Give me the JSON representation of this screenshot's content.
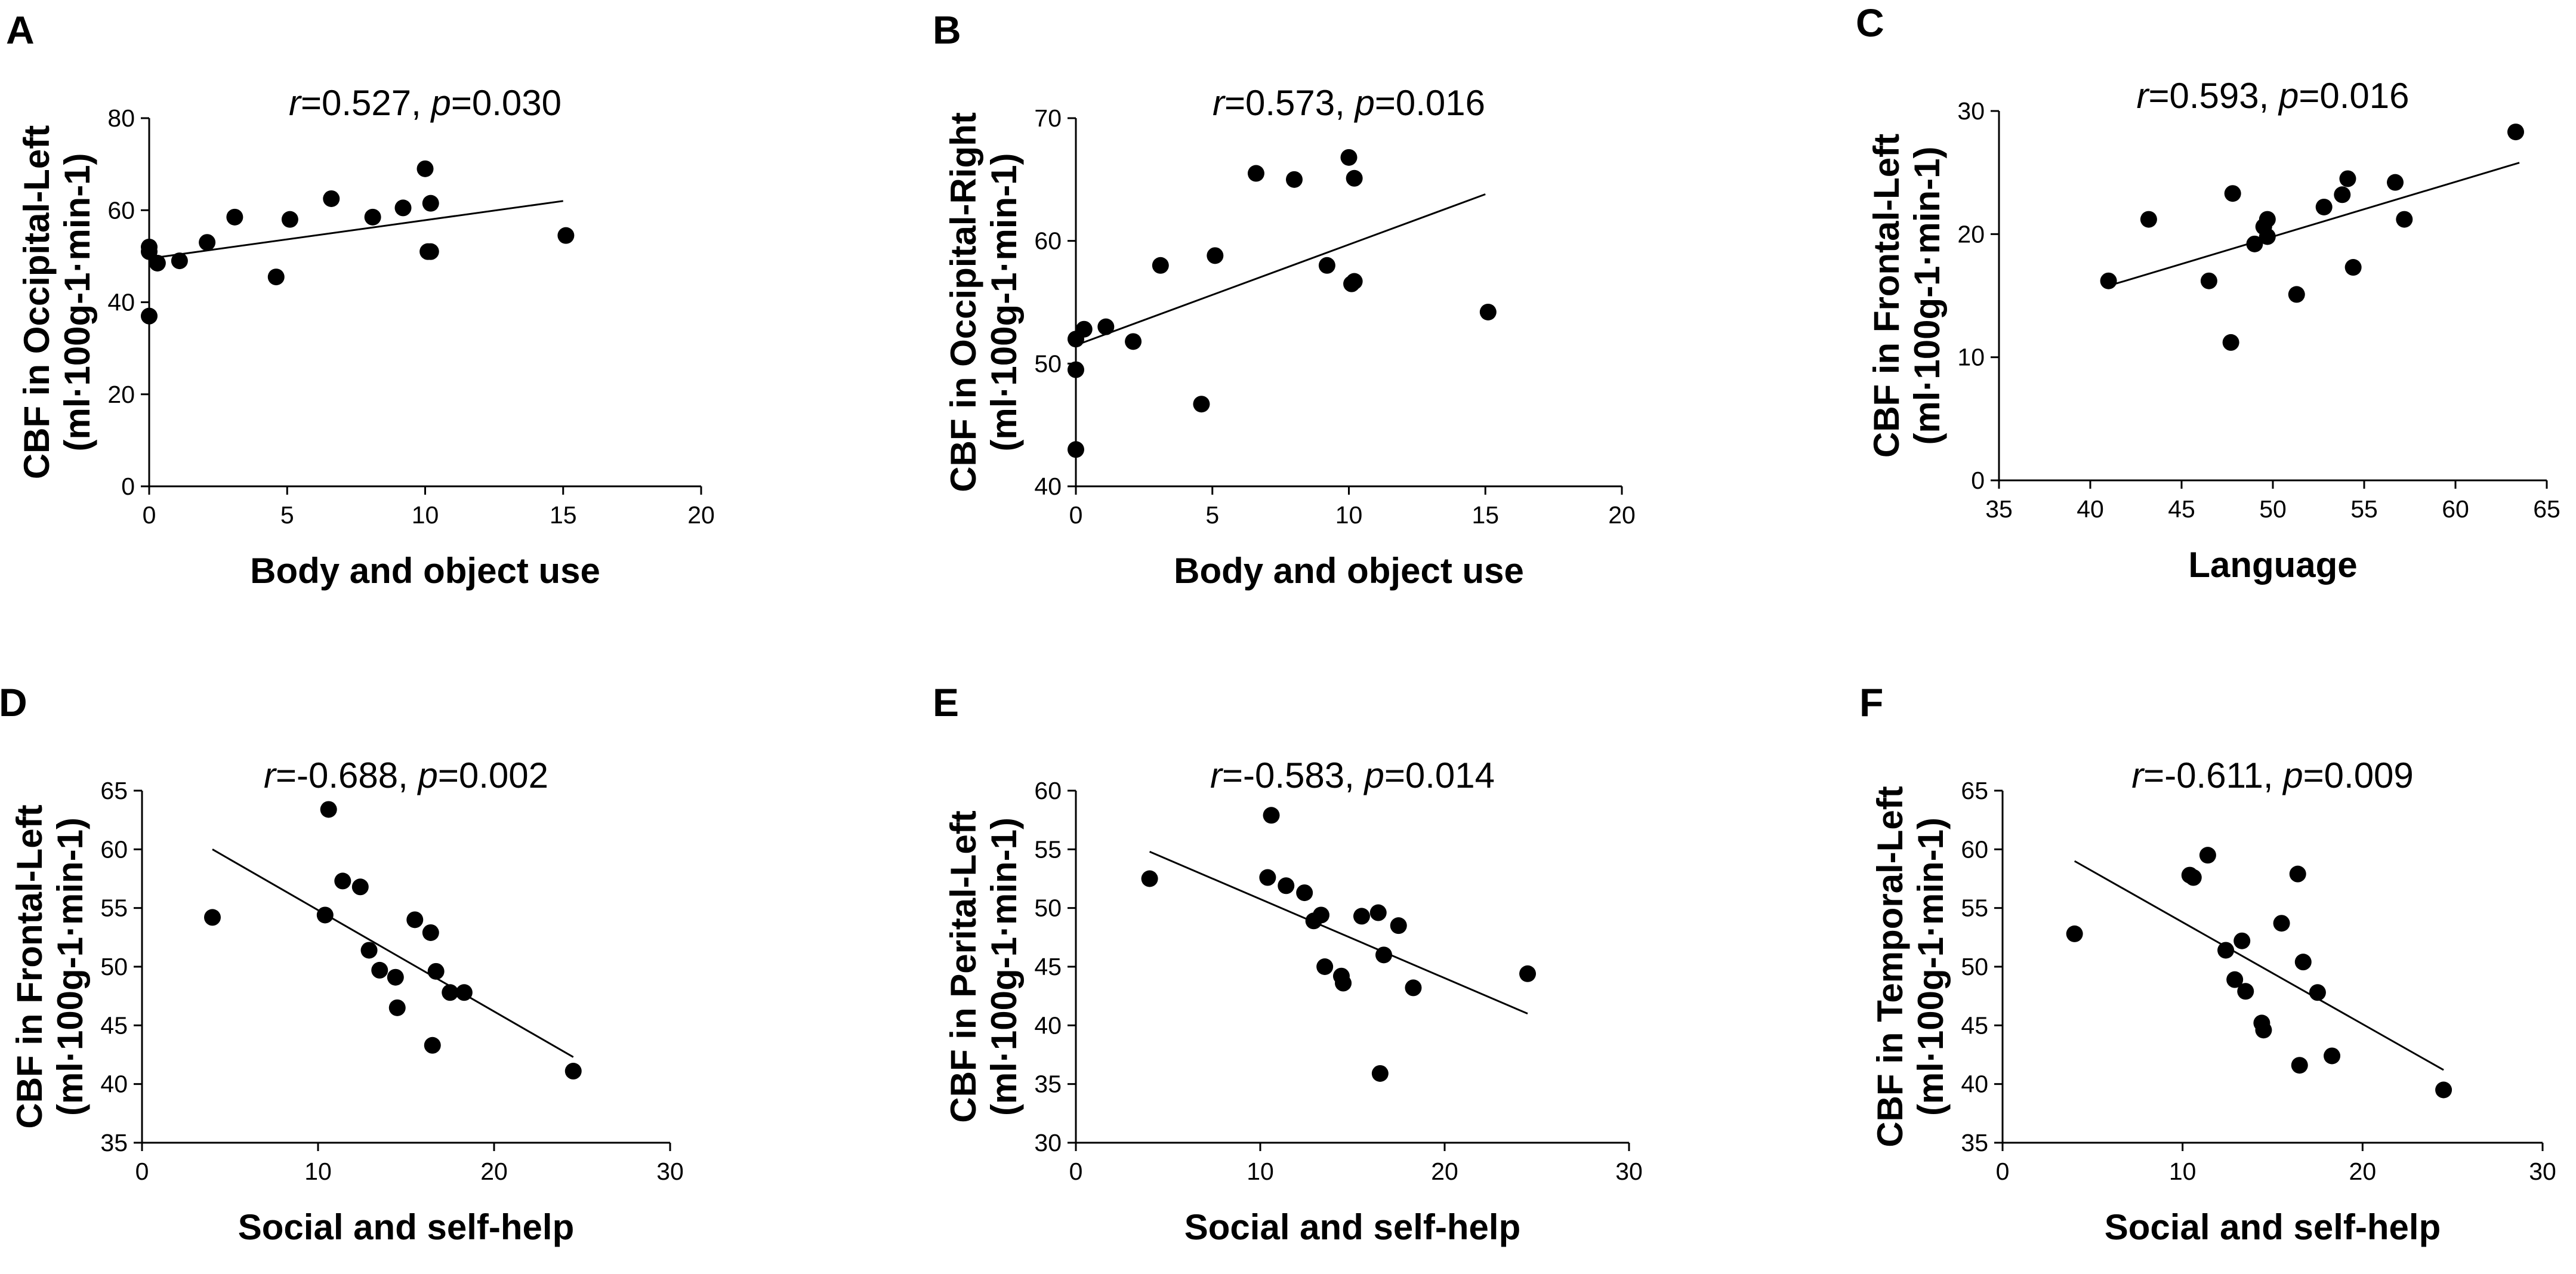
{
  "chart_data": [
    {
      "type": "scatter",
      "panel": "A",
      "xlabel": "Body and object use",
      "ylabel_line1": "CBF in Occipital-Left",
      "ylabel_line2": "(ml·100g-1·min-1)",
      "stat": {
        "r_label": "r=0.527,",
        "p_label": "p=0.030"
      },
      "xlim": [
        0,
        20
      ],
      "ylim": [
        0,
        80
      ],
      "xticks": [
        0,
        5,
        10,
        15,
        20
      ],
      "yticks": [
        0,
        20,
        40,
        60,
        80
      ],
      "trend": {
        "x": [
          0,
          15
        ],
        "y": [
          49.5,
          62
        ]
      },
      "points": [
        {
          "x": 0,
          "y": 37
        },
        {
          "x": 0,
          "y": 51
        },
        {
          "x": 0,
          "y": 52
        },
        {
          "x": 0.3,
          "y": 48.5
        },
        {
          "x": 1.1,
          "y": 49
        },
        {
          "x": 2.1,
          "y": 53
        },
        {
          "x": 3.1,
          "y": 58.5
        },
        {
          "x": 4.6,
          "y": 45.5
        },
        {
          "x": 5.1,
          "y": 58
        },
        {
          "x": 6.6,
          "y": 62.5
        },
        {
          "x": 8.1,
          "y": 58.5
        },
        {
          "x": 9.2,
          "y": 60.5
        },
        {
          "x": 10,
          "y": 69
        },
        {
          "x": 10.1,
          "y": 51
        },
        {
          "x": 10.2,
          "y": 61.5
        },
        {
          "x": 10.2,
          "y": 51
        },
        {
          "x": 15.1,
          "y": 54.5
        }
      ]
    },
    {
      "type": "scatter",
      "panel": "B",
      "xlabel": "Body and object use",
      "ylabel_line1": "CBF in Occipital-Right",
      "ylabel_line2": "(ml·100g-1·min-1)",
      "stat": {
        "r_label": "r=0.573,",
        "p_label": "p=0.016"
      },
      "xlim": [
        0,
        20
      ],
      "ylim": [
        40,
        70
      ],
      "xticks": [
        0,
        5,
        10,
        15,
        20
      ],
      "yticks": [
        40,
        50,
        60,
        70
      ],
      "trend": {
        "x": [
          0,
          15
        ],
        "y": [
          51.5,
          63.8
        ]
      },
      "points": [
        {
          "x": 0,
          "y": 43
        },
        {
          "x": 0,
          "y": 49.5
        },
        {
          "x": 0,
          "y": 52
        },
        {
          "x": 0.3,
          "y": 52.8
        },
        {
          "x": 1.1,
          "y": 53
        },
        {
          "x": 2.1,
          "y": 51.8
        },
        {
          "x": 3.1,
          "y": 58
        },
        {
          "x": 4.6,
          "y": 46.7
        },
        {
          "x": 5.1,
          "y": 58.8
        },
        {
          "x": 6.6,
          "y": 65.5
        },
        {
          "x": 8.0,
          "y": 65
        },
        {
          "x": 9.2,
          "y": 58
        },
        {
          "x": 10,
          "y": 66.8
        },
        {
          "x": 10.1,
          "y": 56.5
        },
        {
          "x": 10.2,
          "y": 65.1
        },
        {
          "x": 10.2,
          "y": 56.7
        },
        {
          "x": 15.1,
          "y": 54.2
        }
      ]
    },
    {
      "type": "scatter",
      "panel": "C",
      "xlabel": "Language",
      "ylabel_line1": "CBF in Frontal-Left",
      "ylabel_line2": "(ml·100g-1·min-1)",
      "stat": {
        "r_label": "r=0.593,",
        "p_label": "p=0.016"
      },
      "xlim": [
        35,
        65
      ],
      "ylim": [
        0,
        30
      ],
      "xticks": [
        35,
        40,
        45,
        50,
        55,
        60,
        65
      ],
      "yticks": [
        0,
        10,
        20,
        30
      ],
      "trend": {
        "x": [
          41,
          63.5
        ],
        "y": [
          15.8,
          25.8
        ]
      },
      "points": [
        {
          "x": 41,
          "y": 16.2
        },
        {
          "x": 43.2,
          "y": 21.2
        },
        {
          "x": 46.5,
          "y": 16.2
        },
        {
          "x": 47.7,
          "y": 11.2
        },
        {
          "x": 47.8,
          "y": 23.3
        },
        {
          "x": 49,
          "y": 19.2
        },
        {
          "x": 49.5,
          "y": 20.6
        },
        {
          "x": 49.7,
          "y": 19.8
        },
        {
          "x": 49.7,
          "y": 21.2
        },
        {
          "x": 51.3,
          "y": 15.1
        },
        {
          "x": 52.8,
          "y": 22.2
        },
        {
          "x": 53.8,
          "y": 23.2
        },
        {
          "x": 54.1,
          "y": 24.5
        },
        {
          "x": 54.4,
          "y": 17.3
        },
        {
          "x": 56.7,
          "y": 24.2
        },
        {
          "x": 57.2,
          "y": 21.2
        },
        {
          "x": 63.3,
          "y": 28.3
        }
      ]
    },
    {
      "type": "scatter",
      "panel": "D",
      "xlabel": "Social and self-help",
      "ylabel_line1": "CBF in Frontal-Left",
      "ylabel_line2": "(ml·100g-1·min-1)",
      "stat": {
        "r_label": "r=-0.688,",
        "p_label": "p=0.002"
      },
      "xlim": [
        0,
        30
      ],
      "ylim": [
        35,
        65
      ],
      "xticks": [
        0,
        10,
        20,
        30
      ],
      "yticks": [
        35,
        40,
        45,
        50,
        55,
        60,
        65
      ],
      "trend": {
        "x": [
          4,
          24.5
        ],
        "y": [
          60,
          42.3
        ]
      },
      "points": [
        {
          "x": 4,
          "y": 54.2
        },
        {
          "x": 10.4,
          "y": 54.4
        },
        {
          "x": 10.6,
          "y": 63.4
        },
        {
          "x": 11.4,
          "y": 57.3
        },
        {
          "x": 12.4,
          "y": 56.8
        },
        {
          "x": 12.9,
          "y": 51.4
        },
        {
          "x": 13.5,
          "y": 49.7
        },
        {
          "x": 14.4,
          "y": 49.1
        },
        {
          "x": 14.5,
          "y": 46.5
        },
        {
          "x": 15.5,
          "y": 54.0
        },
        {
          "x": 16.4,
          "y": 52.9
        },
        {
          "x": 16.5,
          "y": 43.3
        },
        {
          "x": 16.7,
          "y": 49.6
        },
        {
          "x": 17.5,
          "y": 47.8
        },
        {
          "x": 18.3,
          "y": 47.8
        },
        {
          "x": 24.5,
          "y": 41.1
        }
      ]
    },
    {
      "type": "scatter",
      "panel": "E",
      "xlabel": "Social and self-help",
      "ylabel_line1": "CBF in Perital-Left",
      "ylabel_line2": "(ml·100g-1·min-1)",
      "stat": {
        "r_label": "r=-0.583,",
        "p_label": "p=0.014"
      },
      "xlim": [
        0,
        30
      ],
      "ylim": [
        30,
        60
      ],
      "xticks": [
        0,
        10,
        20,
        30
      ],
      "yticks": [
        30,
        35,
        40,
        45,
        50,
        55,
        60
      ],
      "trend": {
        "x": [
          4,
          24.5
        ],
        "y": [
          54.8,
          41.0
        ]
      },
      "points": [
        {
          "x": 4,
          "y": 52.5
        },
        {
          "x": 10.4,
          "y": 52.6
        },
        {
          "x": 10.6,
          "y": 57.9
        },
        {
          "x": 11.4,
          "y": 51.9
        },
        {
          "x": 12.4,
          "y": 51.3
        },
        {
          "x": 12.9,
          "y": 48.9
        },
        {
          "x": 13.3,
          "y": 49.4
        },
        {
          "x": 13.5,
          "y": 45.0
        },
        {
          "x": 14.4,
          "y": 44.2
        },
        {
          "x": 14.5,
          "y": 43.6
        },
        {
          "x": 15.5,
          "y": 49.3
        },
        {
          "x": 16.4,
          "y": 49.6
        },
        {
          "x": 16.5,
          "y": 35.9
        },
        {
          "x": 16.7,
          "y": 46.0
        },
        {
          "x": 17.5,
          "y": 48.5
        },
        {
          "x": 18.3,
          "y": 43.2
        },
        {
          "x": 24.5,
          "y": 44.4
        }
      ]
    },
    {
      "type": "scatter",
      "panel": "F",
      "xlabel": "Social and self-help",
      "ylabel_line1": "CBF in Temporal-Left",
      "ylabel_line2": "(ml·100g-1·min-1)",
      "stat": {
        "r_label": "r=-0.611,",
        "p_label": "p=0.009"
      },
      "xlim": [
        0,
        30
      ],
      "ylim": [
        35,
        65
      ],
      "xticks": [
        0,
        10,
        20,
        30
      ],
      "yticks": [
        35,
        40,
        45,
        50,
        55,
        60,
        65
      ],
      "trend": {
        "x": [
          4,
          24.5
        ],
        "y": [
          59,
          41.2
        ]
      },
      "points": [
        {
          "x": 4,
          "y": 52.8
        },
        {
          "x": 10.4,
          "y": 57.8
        },
        {
          "x": 10.6,
          "y": 57.6
        },
        {
          "x": 11.4,
          "y": 59.5
        },
        {
          "x": 12.4,
          "y": 51.4
        },
        {
          "x": 12.9,
          "y": 48.9
        },
        {
          "x": 13.3,
          "y": 52.2
        },
        {
          "x": 13.5,
          "y": 47.9
        },
        {
          "x": 14.4,
          "y": 45.2
        },
        {
          "x": 14.5,
          "y": 44.6
        },
        {
          "x": 15.5,
          "y": 53.7
        },
        {
          "x": 16.4,
          "y": 57.9
        },
        {
          "x": 16.5,
          "y": 41.6
        },
        {
          "x": 16.7,
          "y": 50.4
        },
        {
          "x": 17.5,
          "y": 47.8
        },
        {
          "x": 18.3,
          "y": 42.4
        },
        {
          "x": 24.5,
          "y": 39.5
        }
      ]
    }
  ]
}
